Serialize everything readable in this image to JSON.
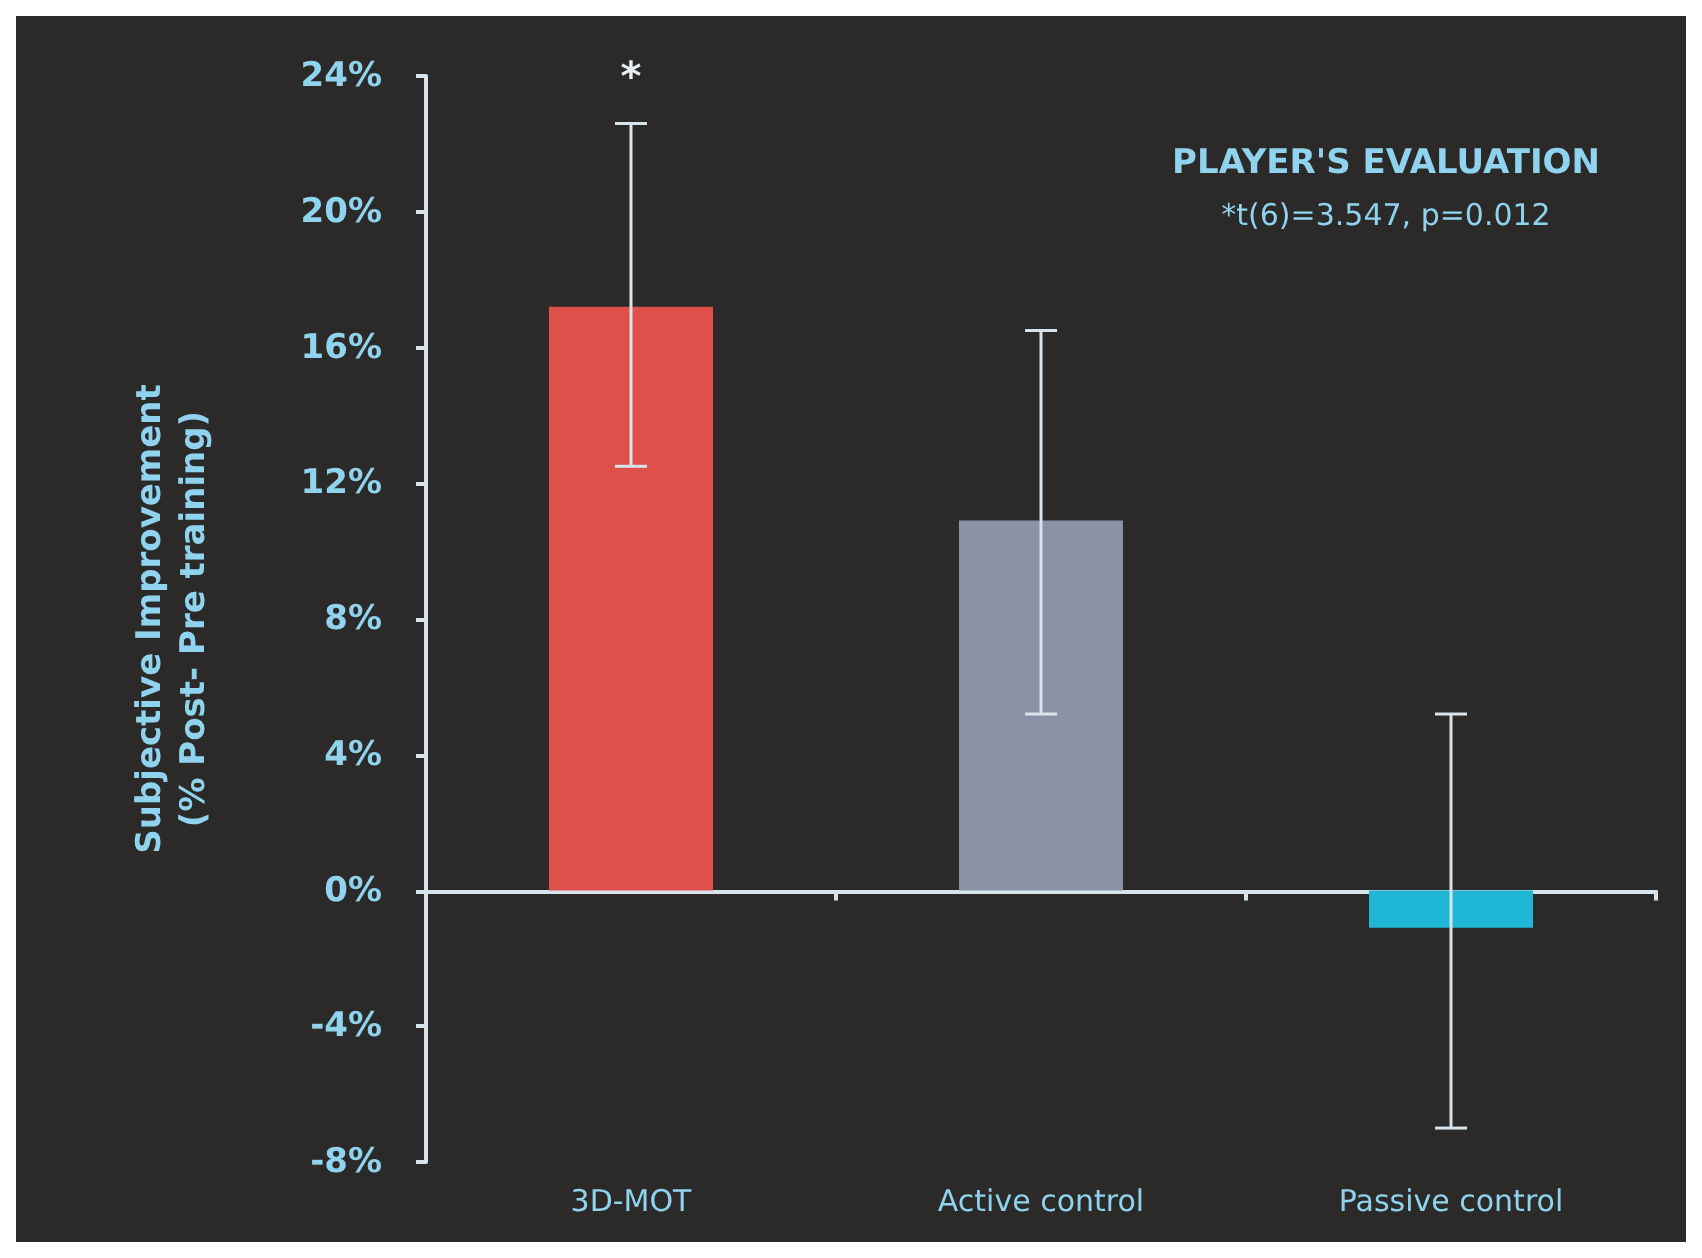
{
  "chart_data": {
    "type": "bar",
    "title": "PLAYER'S EVALUATION",
    "subtitle": "*t(6)=3.547, p=0.012",
    "ylabel": "Subjective Improvement\n(% Post- Pre training)",
    "categories": [
      "3D-MOT",
      "Active control",
      "Passive control"
    ],
    "values": [
      17.2,
      10.9,
      -1.1
    ],
    "colors": [
      "#e0504a",
      "#8a93a6",
      "#20b6d6"
    ],
    "errors": [
      [
        12.5,
        22.6
      ],
      [
        5.2,
        16.5
      ],
      [
        -7.0,
        5.2
      ]
    ],
    "ylim": [
      -8,
      24
    ],
    "yticks": [
      {
        "value": -8,
        "label": "-8%"
      },
      {
        "value": -4,
        "label": "-4%"
      },
      {
        "value": 0,
        "label": "0%"
      },
      {
        "value": 4,
        "label": "4%"
      },
      {
        "value": 8,
        "label": "8%"
      },
      {
        "value": 12,
        "label": "12%"
      },
      {
        "value": 16,
        "label": "16%"
      },
      {
        "value": 20,
        "label": "20%"
      },
      {
        "value": 24,
        "label": "24%"
      }
    ],
    "annotations": [
      "*"
    ]
  }
}
